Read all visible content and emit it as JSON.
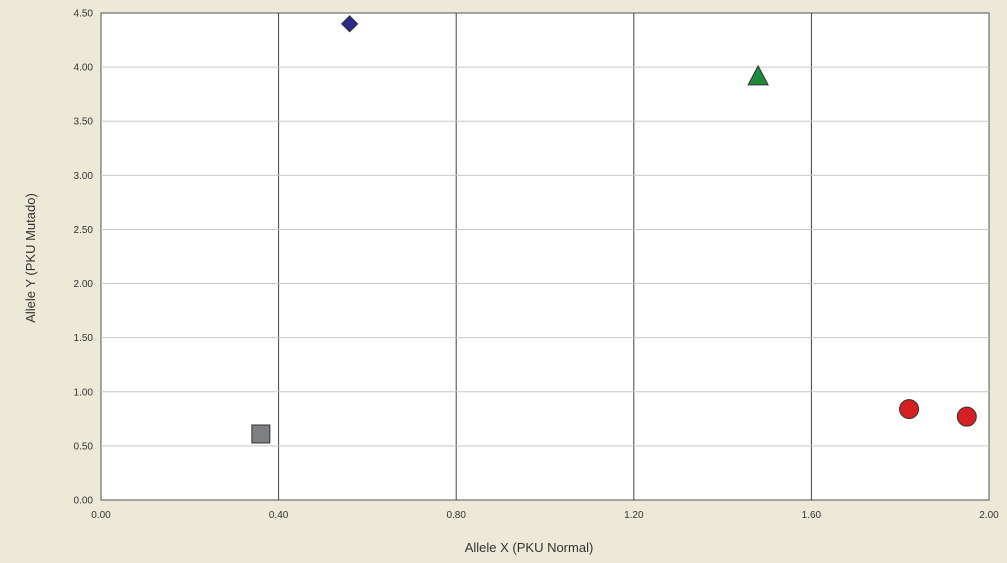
{
  "chart_data": {
    "type": "scatter",
    "title": "",
    "xlabel": "Allele X (PKU Normal)",
    "ylabel": "Allele Y (PKU Mutado)",
    "xlim": [
      0,
      2
    ],
    "ylim": [
      0,
      4.5
    ],
    "x_ticks": [
      "0.00",
      "0.40",
      "0.80",
      "1.20",
      "1.60",
      "2.00"
    ],
    "y_ticks": [
      "0.00",
      "0.50",
      "1.00",
      "1.50",
      "2.00",
      "2.50",
      "3.00",
      "3.50",
      "4.00",
      "4.50"
    ],
    "grid": {
      "vertical": true,
      "horizontal": true
    },
    "series": [
      {
        "marker": "square",
        "color": "#7f8084",
        "points": [
          {
            "x": 0.36,
            "y": 0.61
          }
        ]
      },
      {
        "marker": "diamond",
        "color": "#2a2a8a",
        "points": [
          {
            "x": 0.56,
            "y": 4.4
          }
        ]
      },
      {
        "marker": "triangle",
        "color": "#1e8a3c",
        "points": [
          {
            "x": 1.48,
            "y": 3.91
          }
        ]
      },
      {
        "marker": "circle",
        "color": "#d42020",
        "points": [
          {
            "x": 1.82,
            "y": 0.84
          },
          {
            "x": 1.95,
            "y": 0.77
          }
        ]
      }
    ]
  }
}
